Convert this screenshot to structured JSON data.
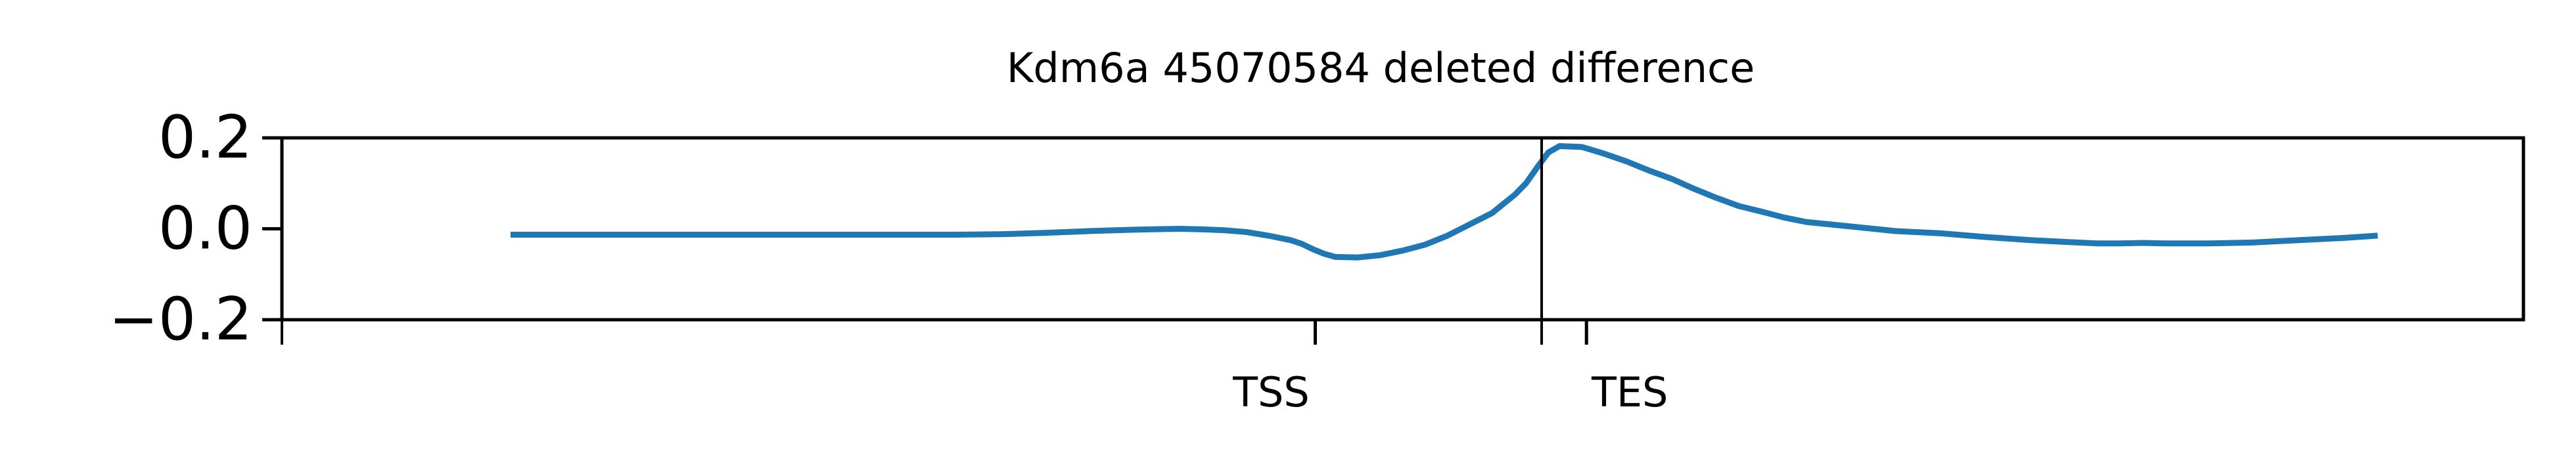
{
  "chart_data": {
    "type": "line",
    "title": "Kdm6a 45070584 deleted difference",
    "xlabel": "",
    "ylabel": "",
    "ylim": [
      -0.2,
      0.2
    ],
    "yticks": [
      0.2,
      0.0,
      -0.2
    ],
    "ytick_labels": [
      "0.2",
      "0.0",
      "−0.2"
    ],
    "xlim": [
      0,
      1000
    ],
    "x_markers": [
      {
        "label": "TSS",
        "x": 461
      },
      {
        "label": "TES",
        "x": 582
      }
    ],
    "vertical_lines": [
      0,
      562
    ],
    "grid": false,
    "legend": "none",
    "series": [
      {
        "color": "#1f77b4",
        "x": [
          102,
          150,
          200,
          250,
          300,
          320,
          340,
          360,
          380,
          400,
          410,
          420,
          430,
          440,
          450,
          455,
          460,
          465,
          470,
          480,
          490,
          500,
          510,
          520,
          530,
          540,
          545,
          550,
          555,
          560,
          565,
          570,
          580,
          590,
          600,
          610,
          620,
          630,
          640,
          650,
          660,
          670,
          680,
          700,
          720,
          740,
          760,
          780,
          800,
          810,
          820,
          830,
          840,
          850,
          860,
          880,
          900,
          920,
          935
        ],
        "values": [
          -0.013,
          -0.013,
          -0.013,
          -0.013,
          -0.013,
          -0.012,
          -0.009,
          -0.005,
          -0.002,
          0.0,
          -0.001,
          -0.003,
          -0.007,
          -0.015,
          -0.025,
          -0.033,
          -0.045,
          -0.055,
          -0.062,
          -0.063,
          -0.058,
          -0.048,
          -0.035,
          -0.015,
          0.01,
          0.035,
          0.055,
          0.075,
          0.1,
          0.135,
          0.168,
          0.182,
          0.18,
          0.165,
          0.148,
          0.128,
          0.11,
          0.088,
          0.068,
          0.05,
          0.038,
          0.025,
          0.015,
          0.005,
          -0.005,
          -0.01,
          -0.018,
          -0.025,
          -0.03,
          -0.032,
          -0.032,
          -0.031,
          -0.032,
          -0.032,
          -0.032,
          -0.03,
          -0.025,
          -0.02,
          -0.015
        ]
      }
    ]
  }
}
